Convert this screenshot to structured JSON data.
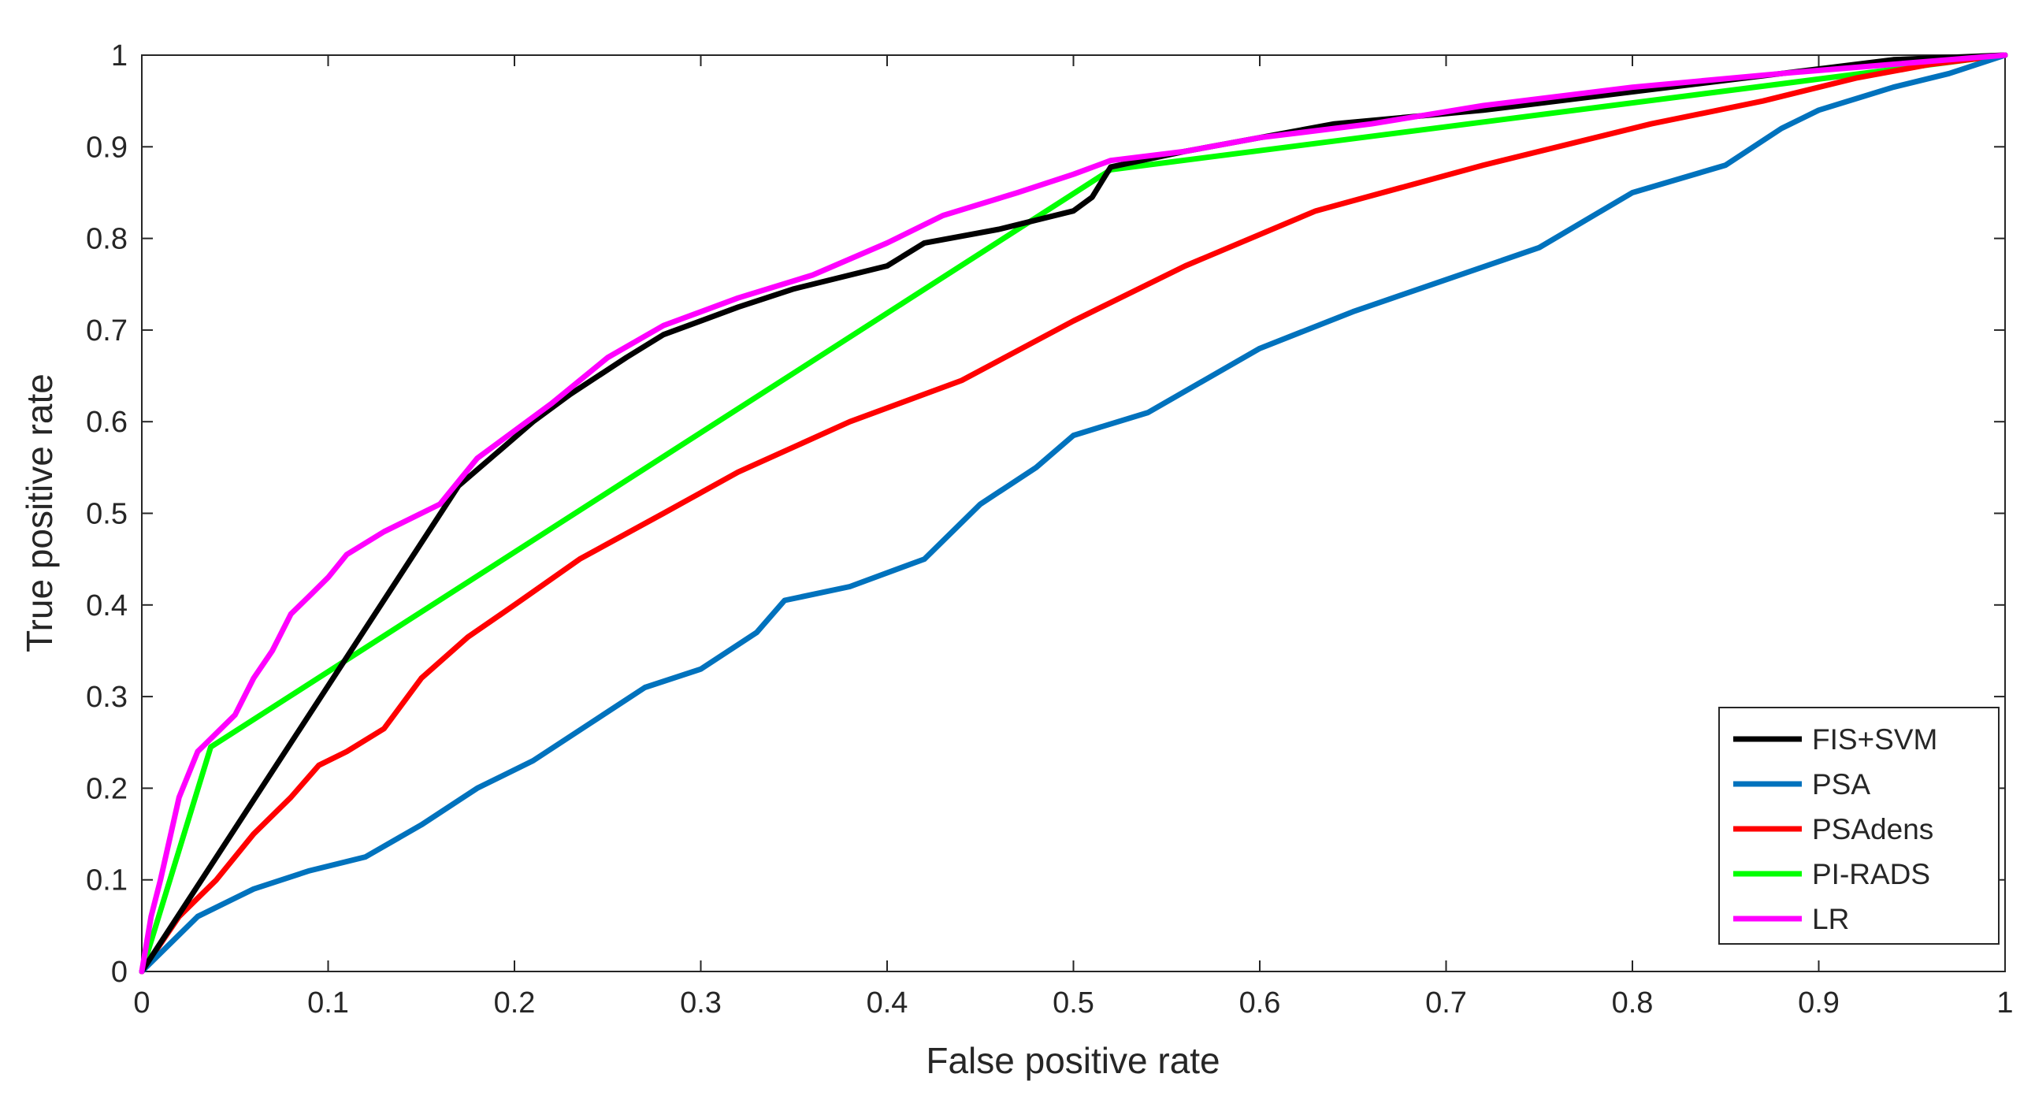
{
  "chart_data": {
    "type": "line",
    "title": "",
    "xlabel": "False positive rate",
    "ylabel": "True positive rate",
    "xlim": [
      0,
      1
    ],
    "ylim": [
      0,
      1
    ],
    "xticks": [
      "0",
      "0.1",
      "0.2",
      "0.3",
      "0.4",
      "0.5",
      "0.6",
      "0.7",
      "0.8",
      "0.9",
      "1"
    ],
    "yticks": [
      "0",
      "0.1",
      "0.2",
      "0.3",
      "0.4",
      "0.5",
      "0.6",
      "0.7",
      "0.8",
      "0.9",
      "1"
    ],
    "grid": false,
    "legend_position": "lower-right",
    "series": [
      {
        "name": "FIS+SVM",
        "color": "#000000",
        "x": [
          0,
          0.17,
          0.19,
          0.21,
          0.23,
          0.26,
          0.28,
          0.3,
          0.32,
          0.35,
          0.38,
          0.4,
          0.42,
          0.46,
          0.5,
          0.51,
          0.52,
          0.56,
          0.6,
          0.64,
          0.72,
          0.8,
          0.88,
          0.94,
          1.0
        ],
        "y": [
          0,
          0.53,
          0.565,
          0.6,
          0.63,
          0.67,
          0.695,
          0.71,
          0.725,
          0.745,
          0.76,
          0.77,
          0.795,
          0.81,
          0.83,
          0.845,
          0.878,
          0.895,
          0.91,
          0.925,
          0.94,
          0.96,
          0.98,
          0.995,
          1.0
        ]
      },
      {
        "name": "PSA",
        "color": "#0072BD",
        "x": [
          0,
          0.03,
          0.06,
          0.09,
          0.12,
          0.15,
          0.18,
          0.21,
          0.24,
          0.27,
          0.3,
          0.33,
          0.345,
          0.38,
          0.42,
          0.45,
          0.48,
          0.5,
          0.54,
          0.6,
          0.65,
          0.7,
          0.75,
          0.8,
          0.85,
          0.88,
          0.9,
          0.94,
          0.97,
          1.0
        ],
        "y": [
          0,
          0.06,
          0.09,
          0.11,
          0.125,
          0.16,
          0.2,
          0.23,
          0.27,
          0.31,
          0.33,
          0.37,
          0.405,
          0.42,
          0.45,
          0.51,
          0.55,
          0.585,
          0.61,
          0.68,
          0.72,
          0.755,
          0.79,
          0.85,
          0.88,
          0.92,
          0.94,
          0.965,
          0.98,
          1.0
        ]
      },
      {
        "name": "PSAdens",
        "color": "#FF0000",
        "x": [
          0,
          0.02,
          0.04,
          0.06,
          0.08,
          0.095,
          0.11,
          0.13,
          0.15,
          0.175,
          0.2,
          0.235,
          0.28,
          0.32,
          0.38,
          0.44,
          0.5,
          0.56,
          0.63,
          0.72,
          0.81,
          0.87,
          0.92,
          0.96,
          1.0
        ],
        "y": [
          0,
          0.06,
          0.1,
          0.15,
          0.19,
          0.225,
          0.24,
          0.265,
          0.32,
          0.365,
          0.4,
          0.45,
          0.5,
          0.545,
          0.6,
          0.645,
          0.71,
          0.77,
          0.83,
          0.88,
          0.925,
          0.95,
          0.975,
          0.99,
          1.0
        ]
      },
      {
        "name": "PI-RADS",
        "color": "#00FF00",
        "x": [
          0,
          0.037,
          0.52,
          1.0
        ],
        "y": [
          0,
          0.245,
          0.875,
          1.0
        ]
      },
      {
        "name": "LR",
        "color": "#FF00FF",
        "x": [
          0,
          0.005,
          0.01,
          0.02,
          0.03,
          0.04,
          0.05,
          0.06,
          0.07,
          0.08,
          0.09,
          0.1,
          0.11,
          0.13,
          0.16,
          0.18,
          0.2,
          0.22,
          0.25,
          0.28,
          0.32,
          0.36,
          0.4,
          0.43,
          0.47,
          0.5,
          0.52,
          0.56,
          0.6,
          0.66,
          0.72,
          0.8,
          0.88,
          0.94,
          1.0
        ],
        "y": [
          0,
          0.06,
          0.1,
          0.19,
          0.24,
          0.26,
          0.28,
          0.32,
          0.35,
          0.39,
          0.41,
          0.43,
          0.455,
          0.48,
          0.51,
          0.56,
          0.59,
          0.62,
          0.67,
          0.705,
          0.735,
          0.76,
          0.795,
          0.825,
          0.85,
          0.87,
          0.885,
          0.895,
          0.91,
          0.925,
          0.945,
          0.965,
          0.98,
          0.99,
          1.0
        ]
      }
    ]
  }
}
